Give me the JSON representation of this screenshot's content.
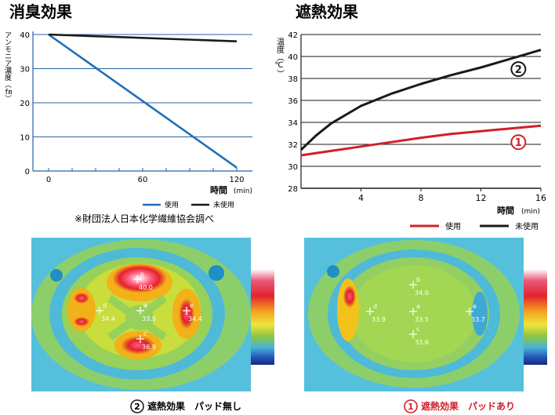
{
  "chart_data": [
    {
      "type": "line",
      "title": "消臭効果",
      "ylabel": "アンモニア濃度（㎙）",
      "xlabel": "時間",
      "xunit": "(min)",
      "x": [
        0,
        120
      ],
      "xticks": [
        0,
        60,
        120
      ],
      "yticks": [
        0,
        10,
        20,
        30,
        40
      ],
      "xlim": [
        0,
        120
      ],
      "ylim": [
        0,
        40
      ],
      "grid": true,
      "legend": "bottom",
      "series": [
        {
          "name": "使用",
          "color": "#1f6fb5",
          "values": [
            40,
            1
          ]
        },
        {
          "name": "未使用",
          "color": "#1a1a1a",
          "values": [
            40,
            38
          ]
        }
      ],
      "annotation": "※財団法人日本化学繊維協会調べ"
    },
    {
      "type": "line",
      "title": "遮熱効果",
      "ylabel": "温度（℃）",
      "xlabel": "時間",
      "xunit": "(min)",
      "xticks": [
        4,
        8,
        12,
        16
      ],
      "yticks": [
        28,
        30,
        32,
        34,
        36,
        38,
        40,
        42
      ],
      "xlim": [
        0,
        16
      ],
      "ylim": [
        28,
        42
      ],
      "grid": true,
      "legend": "bottom",
      "series": [
        {
          "name": "使用",
          "marker": "①",
          "color": "#d0202a",
          "x": [
            0,
            2,
            4,
            6,
            8,
            10,
            12,
            14,
            16
          ],
          "values": [
            31.0,
            31.4,
            31.8,
            32.2,
            32.6,
            32.95,
            33.2,
            33.45,
            33.7
          ]
        },
        {
          "name": "未使用",
          "marker": "②",
          "color": "#1a1a1a",
          "x": [
            0,
            1,
            2,
            4,
            6,
            8,
            10,
            12,
            14,
            16
          ],
          "values": [
            31.5,
            32.8,
            33.9,
            35.5,
            36.6,
            37.5,
            38.3,
            39.0,
            39.8,
            40.6
          ]
        }
      ]
    }
  ],
  "thermal": {
    "left": {
      "marker": "②",
      "caption": "遮熱効果　パッド無し",
      "points": [
        {
          "label": "b",
          "value": "40.0"
        },
        {
          "label": "d",
          "value": "34.4"
        },
        {
          "label": "a",
          "value": "33.9"
        },
        {
          "label": "e",
          "value": "34.4"
        },
        {
          "label": "c",
          "value": "36.9"
        }
      ]
    },
    "right": {
      "marker": "①",
      "caption": "遮熱効果　パッドあり",
      "points": [
        {
          "label": "b",
          "value": "34.0"
        },
        {
          "label": "d",
          "value": "33.9"
        },
        {
          "label": "a",
          "value": "33.5"
        },
        {
          "label": "e",
          "value": "33.7"
        },
        {
          "label": "c",
          "value": "33.6"
        }
      ]
    }
  },
  "colors": {
    "blue": "#1f6fb5",
    "black": "#1a1a1a",
    "red": "#d0202a"
  }
}
